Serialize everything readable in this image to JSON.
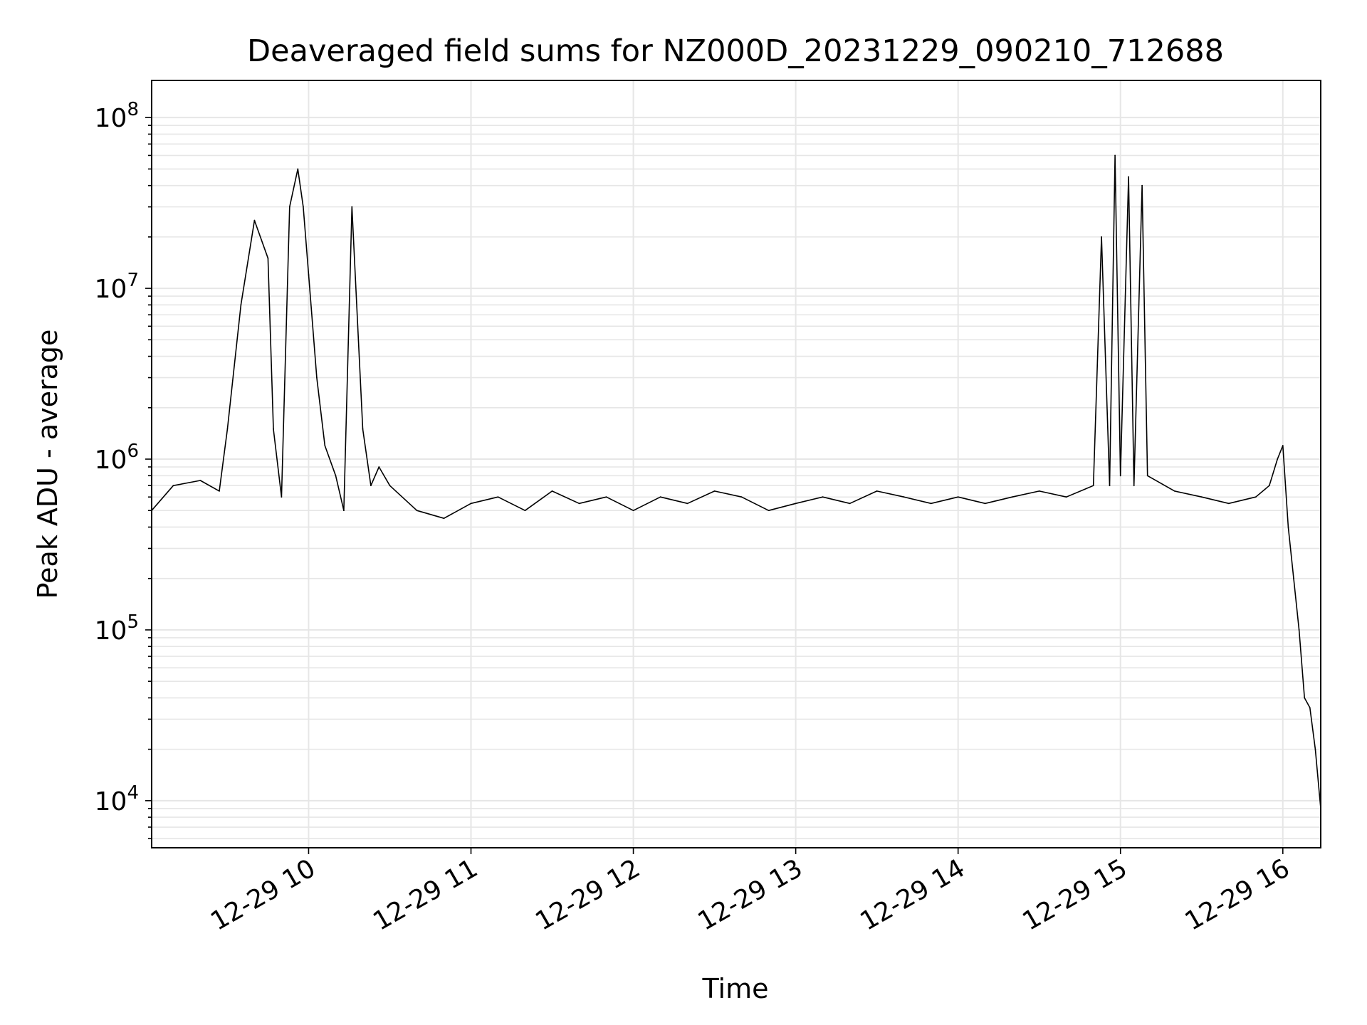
{
  "chart_data": {
    "type": "line",
    "title": "Deaveraged field sums for NZ000D_20231229_090210_712688",
    "xlabel": "Time",
    "ylabel": "Peak ADU - average",
    "yscale": "log",
    "grid": true,
    "x_ticks": [
      "12-29 10",
      "12-29 11",
      "12-29 12",
      "12-29 13",
      "12-29 14",
      "12-29 15",
      "12-29 16"
    ],
    "y_ticks": [
      {
        "base": "10",
        "exp": "4"
      },
      {
        "base": "10",
        "exp": "5"
      },
      {
        "base": "10",
        "exp": "6"
      },
      {
        "base": "10",
        "exp": "7"
      },
      {
        "base": "10",
        "exp": "8"
      }
    ],
    "xlim": [
      "2023-12-29 09:02",
      "2023-12-29 16:14"
    ],
    "ylim": [
      5300,
      165000000
    ],
    "line_color": "#000000",
    "series": [
      {
        "x": [
          "09:02",
          "09:10",
          "09:20",
          "09:27",
          "09:30",
          "09:35",
          "09:40",
          "09:45",
          "09:47",
          "09:50",
          "09:53",
          "09:56",
          "09:58",
          "10:00",
          "10:03",
          "10:06",
          "10:10",
          "10:13",
          "10:16",
          "10:20",
          "10:23",
          "10:26",
          "10:30",
          "10:40",
          "10:50",
          "11:00",
          "11:10",
          "11:20",
          "11:30",
          "11:40",
          "11:50",
          "12:00",
          "12:10",
          "12:20",
          "12:30",
          "12:40",
          "12:50",
          "13:00",
          "13:10",
          "13:20",
          "13:30",
          "13:40",
          "13:50",
          "14:00",
          "14:10",
          "14:20",
          "14:30",
          "14:40",
          "14:50",
          "14:53",
          "14:56",
          "14:58",
          "15:00",
          "15:03",
          "15:05",
          "15:08",
          "15:10",
          "15:20",
          "15:30",
          "15:40",
          "15:50",
          "15:55",
          "15:58",
          "16:00",
          "16:02",
          "16:04",
          "16:06",
          "16:08",
          "16:10",
          "16:12",
          "16:14"
        ],
        "y": [
          500000,
          700000,
          750000,
          650000,
          1500000,
          8000000,
          25000000,
          15000000,
          1500000,
          600000,
          30000000,
          50000000,
          30000000,
          12000000,
          3000000,
          1200000,
          800000,
          500000,
          30000000,
          1500000,
          700000,
          900000,
          700000,
          500000,
          450000,
          550000,
          600000,
          500000,
          650000,
          550000,
          600000,
          500000,
          600000,
          550000,
          650000,
          600000,
          500000,
          550000,
          600000,
          550000,
          650000,
          600000,
          550000,
          600000,
          550000,
          600000,
          650000,
          600000,
          700000,
          20000000,
          700000,
          60000000,
          800000,
          45000000,
          700000,
          40000000,
          800000,
          650000,
          600000,
          550000,
          600000,
          700000,
          1000000,
          1200000,
          400000,
          200000,
          100000,
          40000,
          35000,
          20000,
          9000
        ]
      }
    ]
  }
}
